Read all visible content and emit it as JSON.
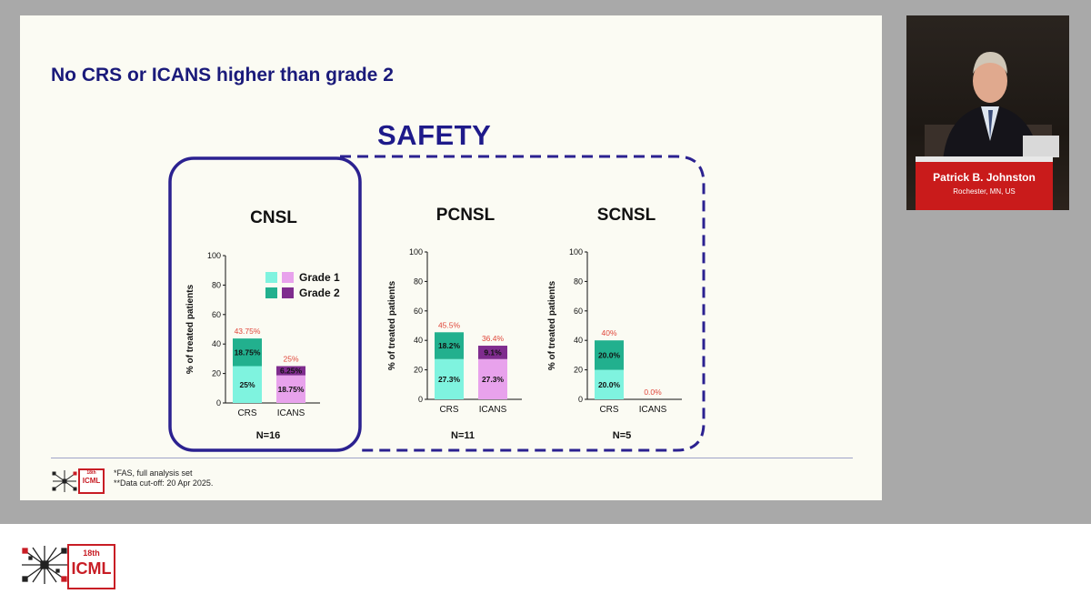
{
  "slide": {
    "title": "No CRS or ICANS higher than grade 2",
    "section_label": "SAFETY",
    "footnote_1": "*FAS, full analysis set",
    "footnote_2": "**Data cut-off: 20 Apr 2025."
  },
  "legend": {
    "grade1": "Grade 1",
    "grade2": "Grade 2"
  },
  "colors": {
    "crs_grade1": "#7ff3df",
    "crs_grade2": "#22b08e",
    "icans_grade1": "#e8a2ec",
    "icans_grade2": "#7f2c8e",
    "total_label": "#e0463a",
    "frame": "#2b2190"
  },
  "chart_data": [
    {
      "type": "bar",
      "stacked": true,
      "title": "CNSL",
      "n_label": "N=16",
      "ylabel": "% of treated patients",
      "ylim": [
        0,
        100
      ],
      "yticks": [
        0,
        20,
        40,
        60,
        80,
        100
      ],
      "categories": [
        "CRS",
        "ICANS"
      ],
      "series": [
        {
          "name": "Grade 1",
          "values": [
            25,
            18.75
          ],
          "labels": [
            "25%",
            "18.75%"
          ]
        },
        {
          "name": "Grade 2",
          "values": [
            18.75,
            6.25
          ],
          "labels": [
            "18.75%",
            "6.25%"
          ]
        }
      ],
      "totals": [
        43.75,
        25
      ],
      "total_labels": [
        "43.75%",
        "25%"
      ],
      "legend": true
    },
    {
      "type": "bar",
      "stacked": true,
      "title": "PCNSL",
      "n_label": "N=11",
      "ylabel": "% of treated patients",
      "ylim": [
        0,
        100
      ],
      "yticks": [
        0,
        20,
        40,
        60,
        80,
        100
      ],
      "categories": [
        "CRS",
        "ICANS"
      ],
      "series": [
        {
          "name": "Grade 1",
          "values": [
            27.3,
            27.3
          ],
          "labels": [
            "27.3%",
            "27.3%"
          ]
        },
        {
          "name": "Grade 2",
          "values": [
            18.2,
            9.1
          ],
          "labels": [
            "18.2%",
            "9.1%"
          ]
        }
      ],
      "totals": [
        45.5,
        36.4
      ],
      "total_labels": [
        "45.5%",
        "36.4%"
      ],
      "legend": false
    },
    {
      "type": "bar",
      "stacked": true,
      "title": "SCNSL",
      "n_label": "N=5",
      "ylabel": "% of treated patients",
      "ylim": [
        0,
        100
      ],
      "yticks": [
        0,
        20,
        40,
        60,
        80,
        100
      ],
      "categories": [
        "CRS",
        "ICANS"
      ],
      "series": [
        {
          "name": "Grade 1",
          "values": [
            20.0,
            0
          ],
          "labels": [
            "20.0%",
            ""
          ]
        },
        {
          "name": "Grade 2",
          "values": [
            20.0,
            0
          ],
          "labels": [
            "20.0%",
            ""
          ]
        }
      ],
      "totals": [
        40,
        0
      ],
      "total_labels": [
        "40%",
        "0.0%"
      ],
      "legend": false
    }
  ],
  "speaker": {
    "name": "Patrick B. Johnston",
    "location": "Rochester, MN, US"
  },
  "logo": {
    "edition": "18th",
    "acronym": "ICML"
  }
}
